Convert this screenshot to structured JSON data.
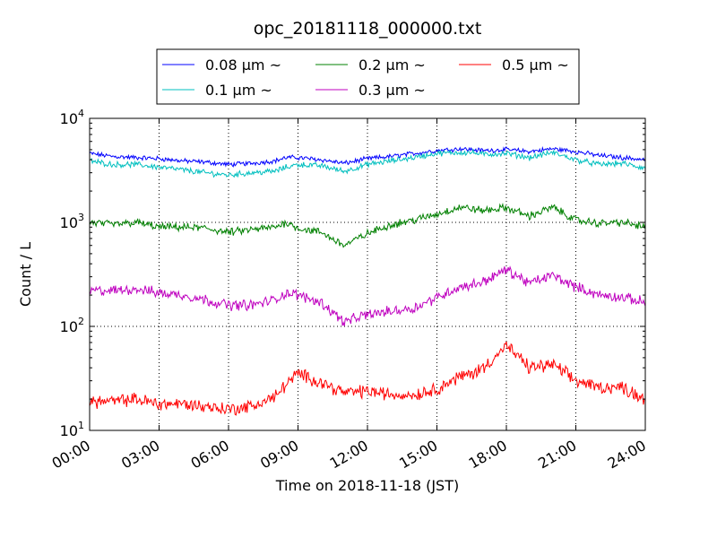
{
  "chart_data": {
    "type": "line",
    "title": "opc_20181118_000000.txt",
    "xlabel": "Time on 2018-11-18 (JST)",
    "ylabel": "Count / L",
    "xlim": [
      0,
      24
    ],
    "ylim": [
      10,
      10000
    ],
    "yscale": "log",
    "grid": true,
    "legend_position": "top-center",
    "x_ticks": [
      0,
      3,
      6,
      9,
      12,
      15,
      18,
      21,
      24
    ],
    "x_tick_labels": [
      "00:00",
      "03:00",
      "06:00",
      "09:00",
      "12:00",
      "15:00",
      "18:00",
      "21:00",
      "24:00"
    ],
    "y_ticks": [
      10,
      100,
      1000,
      10000
    ],
    "y_tick_labels": [
      {
        "base": "10",
        "exp": "1"
      },
      {
        "base": "10",
        "exp": "2"
      },
      {
        "base": "10",
        "exp": "3"
      },
      {
        "base": "10",
        "exp": "4"
      }
    ],
    "legend_columns": [
      [
        "0.08 μm ~",
        "0.1 μm ~"
      ],
      [
        "0.2 μm ~",
        "0.3 μm ~"
      ],
      [
        "0.5 μm ~"
      ]
    ],
    "x": [
      0,
      1,
      2,
      3,
      4,
      5,
      6,
      7,
      8,
      8.5,
      9,
      10,
      11,
      12,
      13,
      14,
      15,
      16,
      16.5,
      17,
      18,
      19,
      20,
      21,
      22,
      23,
      24
    ],
    "series": [
      {
        "name": "0.08 μm ~",
        "color": "#0000ff",
        "values": [
          4600,
          4300,
          4200,
          4100,
          3900,
          3800,
          3600,
          3700,
          3900,
          4200,
          4200,
          4000,
          3700,
          4100,
          4300,
          4600,
          4900,
          5100,
          5000,
          4900,
          5000,
          4800,
          5100,
          4800,
          4400,
          4200,
          4000
        ]
      },
      {
        "name": "0.1 μm ~",
        "color": "#00bfbf",
        "values": [
          3900,
          3600,
          3600,
          3400,
          3200,
          3000,
          2850,
          3000,
          3100,
          3400,
          3600,
          3500,
          3100,
          3600,
          3900,
          4200,
          4600,
          4700,
          4700,
          4500,
          4600,
          4200,
          4700,
          4000,
          3600,
          3700,
          3300
        ]
      },
      {
        "name": "0.2 μm ~",
        "color": "#008000",
        "values": [
          1000,
          950,
          1000,
          900,
          900,
          880,
          800,
          850,
          900,
          1000,
          880,
          800,
          600,
          780,
          950,
          1050,
          1200,
          1400,
          1350,
          1300,
          1380,
          1150,
          1400,
          1050,
          980,
          1000,
          900
        ]
      },
      {
        "name": "0.3 μm ~",
        "color": "#bf00bf",
        "values": [
          220,
          220,
          230,
          210,
          200,
          180,
          160,
          160,
          180,
          210,
          200,
          170,
          110,
          130,
          140,
          150,
          190,
          240,
          250,
          270,
          350,
          260,
          310,
          240,
          200,
          190,
          170
        ]
      },
      {
        "name": "0.5 μm ~",
        "color": "#ff0000",
        "values": [
          19,
          19,
          20,
          18,
          18,
          17,
          16,
          17,
          21,
          28,
          35,
          29,
          23,
          24,
          22,
          22,
          25,
          33,
          35,
          40,
          65,
          40,
          43,
          30,
          26,
          26,
          20
        ]
      }
    ]
  }
}
